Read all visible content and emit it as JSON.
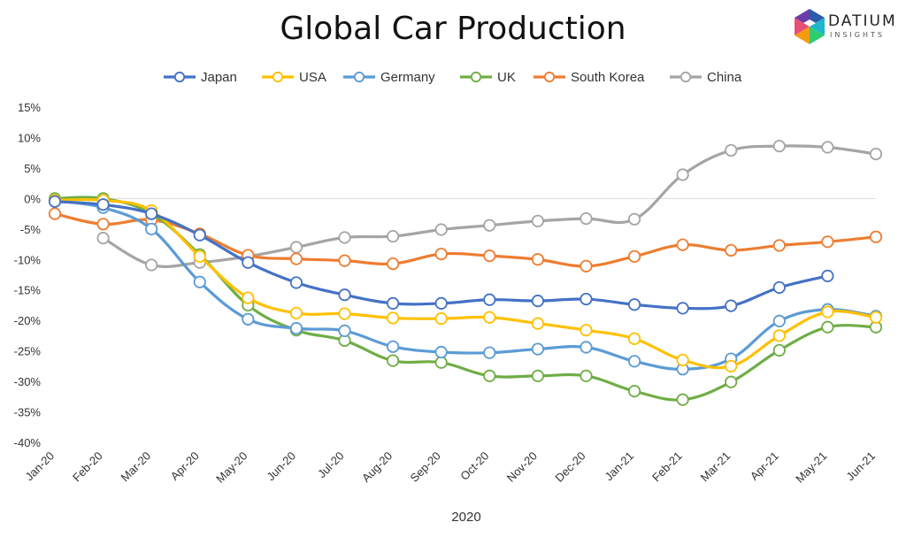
{
  "chart_data": {
    "type": "line",
    "title": "Global Car Production",
    "xlabel": "2020",
    "ylabel": "",
    "ylim": [
      -40,
      15
    ],
    "ytick_step": 5,
    "ytick_format": "percent",
    "grid": "zero-line only",
    "legend_position": "top",
    "categories": [
      "Jan-20",
      "Feb-20",
      "Mar-20",
      "Apr-20",
      "May-20",
      "Jun-20",
      "Jul-20",
      "Aug-20",
      "Sep-20",
      "Oct-20",
      "Nov-20",
      "Dec-20",
      "Jan-21",
      "Feb-21",
      "Mar-21",
      "Apr-21",
      "May-21",
      "Jun-21"
    ],
    "series": [
      {
        "name": "Japan",
        "color": "#4472C4",
        "values": [
          -0.5,
          -1,
          -2.5,
          -6,
          -10.5,
          -13.8,
          -15.8,
          -17.2,
          -17.2,
          -16.6,
          -16.8,
          -16.5,
          -17.4,
          -18,
          -17.6,
          -14.6,
          -12.7,
          null
        ]
      },
      {
        "name": "USA",
        "color": "#FFC000",
        "values": [
          -0.3,
          -0.3,
          -2,
          -9.5,
          -16.3,
          -18.8,
          -18.9,
          -19.6,
          -19.7,
          -19.5,
          -20.5,
          -21.6,
          -23,
          -26.5,
          -27.5,
          -22.5,
          -18.6,
          -19.5
        ]
      },
      {
        "name": "Germany",
        "color": "#5B9BD5",
        "values": [
          -0.4,
          -1.5,
          -5,
          -13.7,
          -19.8,
          -21.3,
          -21.7,
          -24.3,
          -25.2,
          -25.3,
          -24.7,
          -24.4,
          -26.7,
          -28,
          -26.3,
          -20.1,
          -18.2,
          -19.3
        ]
      },
      {
        "name": "UK",
        "color": "#70AD47",
        "values": [
          0,
          0,
          -2.5,
          -9.2,
          -17.5,
          -21.6,
          -23.3,
          -26.6,
          -26.9,
          -29.1,
          -29.1,
          -29.1,
          -31.6,
          -33,
          -30.1,
          -24.9,
          -21.1,
          -21.1
        ]
      },
      {
        "name": "South Korea",
        "color": "#ED7D31",
        "values": [
          -2.5,
          -4.2,
          -3.5,
          -5.8,
          -9.3,
          -9.9,
          -10.2,
          -10.7,
          -9.1,
          -9.4,
          -10,
          -11.1,
          -9.5,
          -7.6,
          -8.5,
          -7.7,
          -7.1,
          -6.3
        ]
      },
      {
        "name": "China",
        "color": "#A5A5A5",
        "values": [
          null,
          -6.5,
          -10.9,
          -10.5,
          -9.5,
          -8,
          -6.4,
          -6.2,
          -5.1,
          -4.4,
          -3.7,
          -3.3,
          -3.4,
          3.9,
          7.9,
          8.6,
          8.4,
          7.3
        ]
      }
    ]
  },
  "logo": {
    "text": "DATIUM",
    "subtext": "INSIGHTS"
  }
}
